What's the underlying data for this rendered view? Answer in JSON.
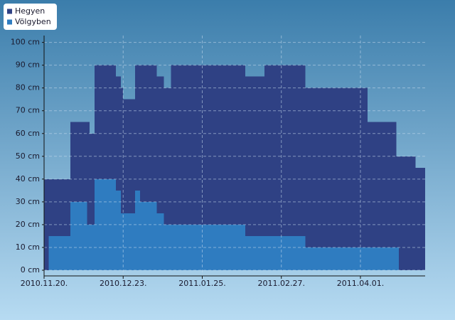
{
  "chart_data": {
    "type": "area",
    "x": [
      "2010.11.20.",
      "2010.11.22.",
      "2010.12.01.",
      "2010.12.08.",
      "2010.12.09.",
      "2010.12.11.",
      "2010.12.20.",
      "2010.12.22.",
      "2010.12.23.",
      "2010.12.28.",
      "2010.12.30.",
      "2011.01.06.",
      "2011.01.09.",
      "2011.01.12.",
      "2011.02.12.",
      "2011.02.20.",
      "2011.03.09.",
      "2011.04.04.",
      "2011.04.16.",
      "2011.04.17.",
      "2011.04.24.",
      "2011.04.28."
    ],
    "series": [
      {
        "name": "Hegyen",
        "color": "#2f4184",
        "values": [
          40,
          40,
          65,
          65,
          60,
          90,
          85,
          80,
          75,
          90,
          90,
          85,
          80,
          90,
          85,
          90,
          80,
          65,
          50,
          50,
          45,
          45
        ]
      },
      {
        "name": "Völgyben",
        "color": "#2f7cc0",
        "values": [
          0,
          15,
          30,
          20,
          20,
          40,
          35,
          25,
          25,
          35,
          30,
          25,
          20,
          20,
          15,
          15,
          10,
          10,
          10,
          0,
          0,
          0
        ]
      }
    ],
    "xlim": [
      "2010.11.20.",
      "2011.04.28."
    ],
    "xticks": [
      "2010.11.20.",
      "2010.12.23.",
      "2011.01.25.",
      "2011.02.27.",
      "2011.04.01."
    ],
    "ylim": [
      -2.5,
      103
    ],
    "yticks": [
      {
        "value": 0,
        "label": "0 cm"
      },
      {
        "value": 10,
        "label": "10 cm"
      },
      {
        "value": 20,
        "label": "20 cm"
      },
      {
        "value": 30,
        "label": "30 cm"
      },
      {
        "value": 40,
        "label": "40 cm"
      },
      {
        "value": 50,
        "label": "50 cm"
      },
      {
        "value": 60,
        "label": "60 cm"
      },
      {
        "value": 70,
        "label": "70 cm"
      },
      {
        "value": 80,
        "label": "80 cm"
      },
      {
        "value": 90,
        "label": "90 cm"
      },
      {
        "value": 100,
        "label": "100 cm"
      }
    ],
    "grid": true
  }
}
